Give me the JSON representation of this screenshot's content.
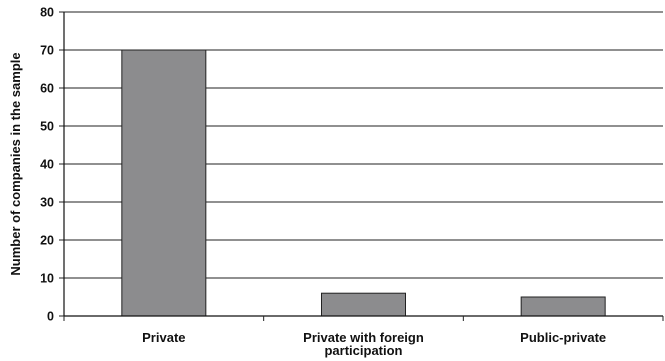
{
  "chart_data": {
    "type": "bar",
    "title": "",
    "xlabel": "",
    "ylabel": "Number of companies in the sample",
    "categories": [
      [
        "Private"
      ],
      [
        "Private with foreign",
        "participation"
      ],
      [
        "Public-private"
      ]
    ],
    "values": [
      70,
      6,
      5
    ],
    "ylim": [
      0,
      80
    ],
    "yticks": [
      0,
      10,
      20,
      30,
      40,
      50,
      60,
      70,
      80
    ],
    "grid": "horizontal",
    "bar_color": "#8c8c8e",
    "bar_edge_color": "#222222",
    "grid_color": "#222222"
  }
}
